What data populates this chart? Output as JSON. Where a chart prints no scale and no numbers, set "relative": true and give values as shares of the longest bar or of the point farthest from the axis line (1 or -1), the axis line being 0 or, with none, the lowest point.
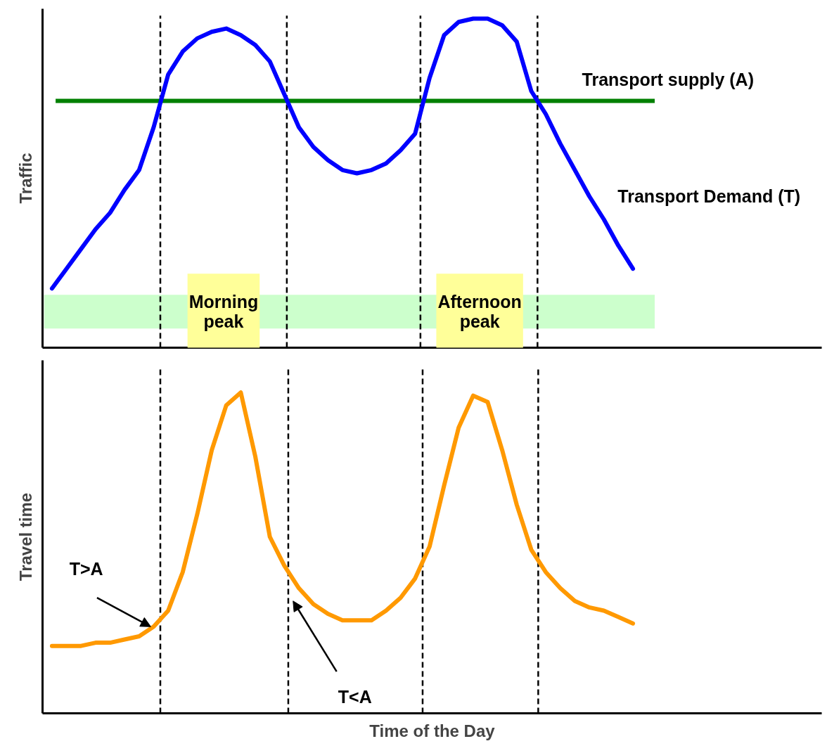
{
  "chart_data": [
    {
      "type": "line",
      "relative": true,
      "ylabel": "Traffic",
      "tick_labels": false,
      "grid": false,
      "categories": [
        null,
        null,
        null,
        null,
        null,
        null,
        null,
        null,
        null,
        null,
        null,
        null,
        null,
        null,
        null,
        null,
        null,
        null,
        null,
        null,
        null,
        null,
        null,
        null,
        null,
        null,
        null,
        null,
        null,
        null,
        null,
        null,
        null,
        null,
        null,
        null,
        null,
        null,
        null,
        null,
        null
      ],
      "series": [
        {
          "name": "Transport Demand (T)",
          "color": "#0000ff",
          "values": [
            0.18,
            0.24,
            0.3,
            0.36,
            0.41,
            0.48,
            0.54,
            0.67,
            0.83,
            0.9,
            0.94,
            0.96,
            0.97,
            0.95,
            0.92,
            0.87,
            0.77,
            0.67,
            0.61,
            0.57,
            0.54,
            0.53,
            0.54,
            0.56,
            0.6,
            0.65,
            0.82,
            0.95,
            0.99,
            1,
            1,
            0.98,
            0.93,
            0.78,
            0.71,
            0.62,
            0.54,
            0.46,
            0.39,
            0.31,
            0.24
          ]
        }
      ],
      "ref_lines": [
        {
          "axis": "y",
          "value": 0.75,
          "label": "Transport supply (A)",
          "color": "#008000",
          "line_style": "solid"
        }
      ],
      "bands": [
        {
          "axis": "y",
          "from": 0.058,
          "to": 0.161,
          "label": null,
          "color": "#ccffcc"
        }
      ],
      "annotations": [
        "Morning\npeak",
        "Afternoon\npeak"
      ]
    },
    {
      "type": "line",
      "relative": true,
      "xlabel": "Time of the Day",
      "ylabel": "Travel time",
      "tick_labels": false,
      "grid": false,
      "categories": [
        null,
        null,
        null,
        null,
        null,
        null,
        null,
        null,
        null,
        null,
        null,
        null,
        null,
        null,
        null,
        null,
        null,
        null,
        null,
        null,
        null,
        null,
        null,
        null,
        null,
        null,
        null,
        null,
        null,
        null,
        null,
        null,
        null,
        null,
        null,
        null,
        null,
        null,
        null,
        null,
        null
      ],
      "series": [
        {
          "color": "#ff9900",
          "values": [
            0.21,
            0.21,
            0.21,
            0.22,
            0.22,
            0.23,
            0.24,
            0.27,
            0.32,
            0.44,
            0.62,
            0.82,
            0.96,
            1,
            0.8,
            0.55,
            0.46,
            0.39,
            0.34,
            0.31,
            0.29,
            0.29,
            0.29,
            0.32,
            0.36,
            0.42,
            0.52,
            0.71,
            0.89,
            0.99,
            0.97,
            0.82,
            0.65,
            0.51,
            0.44,
            0.39,
            0.35,
            0.33,
            0.32,
            0.3,
            0.28
          ]
        }
      ],
      "annotations": [
        "T>A",
        "T<A"
      ]
    }
  ]
}
